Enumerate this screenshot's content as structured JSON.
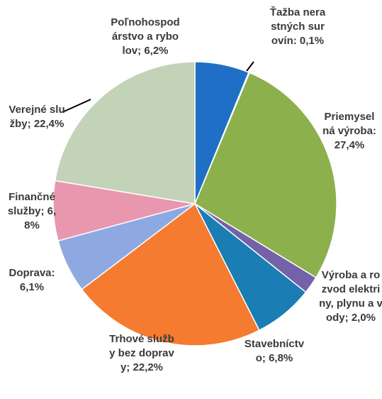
{
  "chart_data": {
    "type": "pie",
    "categories": [
      "Poľnohospodárstvo a rybolov;",
      "Ťažba nerastných surovín:",
      "Priemyselná výroba:",
      "Výroba a rozvod elektriny, plynu a vody;",
      "Stavebníctvo;",
      "Trhové služby bez dopravy;",
      "Doprava:",
      "Finančné služby;",
      "Verejné služby;"
    ],
    "values": [
      6.2,
      0.1,
      27.4,
      2.0,
      6.8,
      22.2,
      6.1,
      6.8,
      22.4
    ],
    "value_labels": [
      "6,2%",
      "0,1%",
      "27,4%",
      "2,0%",
      "6,8%",
      "22,2%",
      "6,1%",
      "6,8%",
      "22,4%"
    ],
    "colors": [
      "#1f6fc6",
      "#1b3f8a",
      "#8cb04b",
      "#7462a8",
      "#1a7db4",
      "#f57b30",
      "#8ea9e2",
      "#e996af",
      "#c3d3b7"
    ]
  }
}
